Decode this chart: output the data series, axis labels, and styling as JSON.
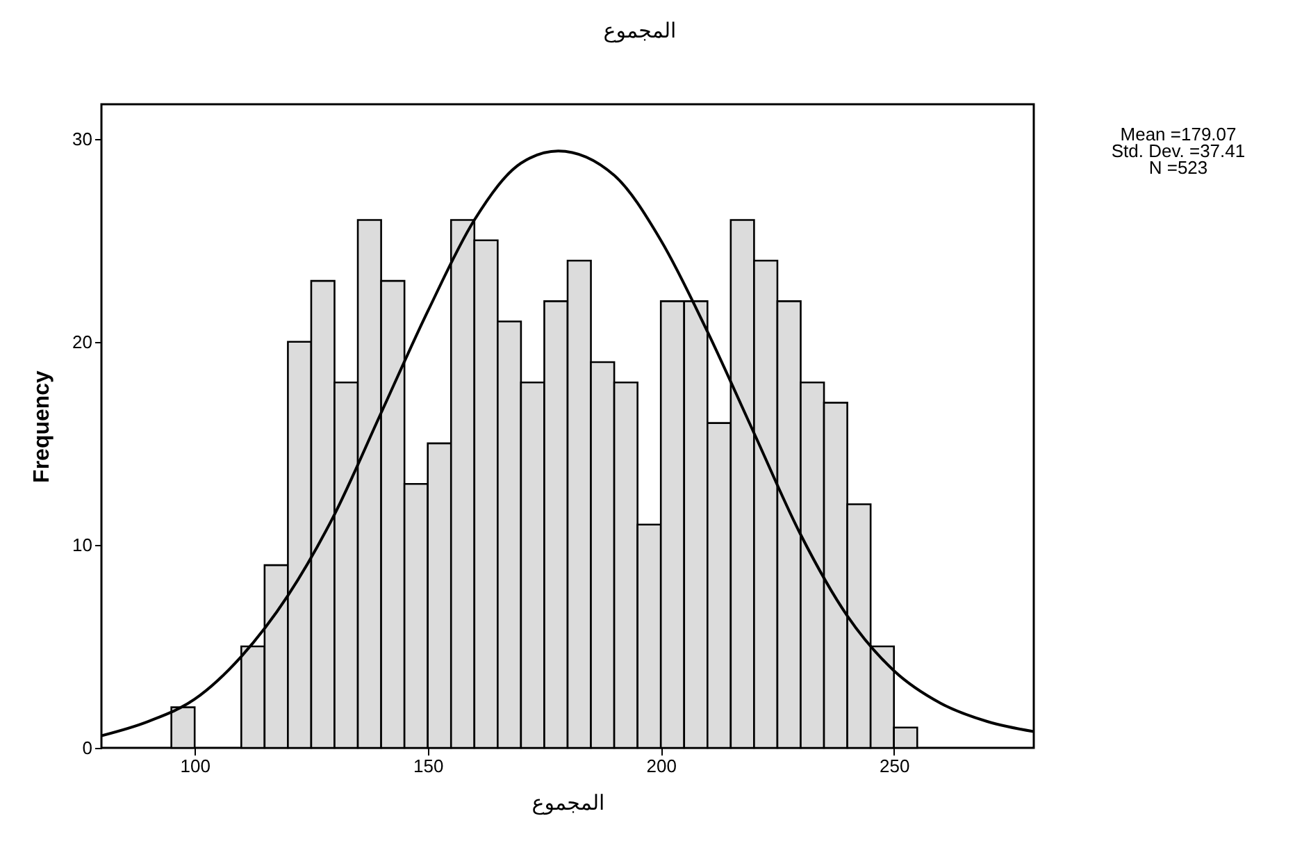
{
  "chart_data": {
    "type": "histogram",
    "title": "المجموع",
    "xlabel": "المجموع",
    "ylabel": "Frequency",
    "annotations": [
      "Mean =179.07",
      "Std. Dev. =37.41",
      "N =523"
    ],
    "bins": [
      95,
      100,
      105,
      110,
      115,
      120,
      125,
      130,
      135,
      140,
      145,
      150,
      155,
      160,
      165,
      170,
      175,
      180,
      185,
      190,
      195,
      200,
      205,
      210,
      215,
      220,
      225,
      230,
      235,
      240,
      245,
      250,
      255
    ],
    "series": [
      {
        "color": "#dcdcdc",
        "values": [
          2,
          0,
          0,
          5,
          9,
          20,
          23,
          18,
          26,
          23,
          13,
          15,
          26,
          25,
          21,
          18,
          22,
          24,
          19,
          18,
          11,
          22,
          22,
          16,
          26,
          24,
          22,
          18,
          17,
          12,
          5,
          1
        ]
      },
      {
        "type": "line",
        "color": "#000000",
        "x": [
          80,
          90,
          100,
          110,
          120,
          130,
          140,
          150,
          160,
          170,
          178,
          190,
          200,
          210,
          220,
          230,
          240,
          250,
          260,
          270,
          280
        ],
        "values": [
          0.6,
          1.3,
          2.4,
          4.5,
          7.5,
          11.5,
          16.5,
          21.5,
          26,
          28.8,
          29.4,
          28.2,
          25,
          20.5,
          15.5,
          10.5,
          6.5,
          3.8,
          2.2,
          1.3,
          0.8
        ]
      }
    ],
    "xlim": [
      80,
      280
    ],
    "xticks": [
      100,
      150,
      200,
      250
    ],
    "ylim": [
      0,
      31.7
    ],
    "yticks": [
      0,
      10,
      20,
      30
    ]
  }
}
